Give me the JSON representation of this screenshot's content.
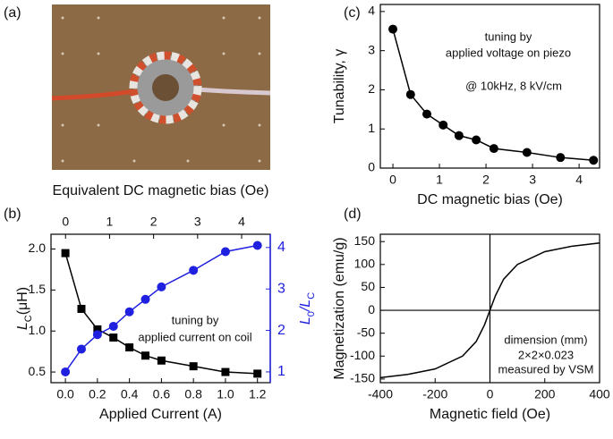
{
  "photo": {
    "label": "(a)"
  },
  "chart_data": [
    {
      "type": "line",
      "label": "(b)",
      "xlabel": "Applied Current (A)",
      "ylabel": [
        "L",
        "C",
        "(μH)"
      ],
      "y2label": [
        "L",
        "0",
        "/L",
        "C"
      ],
      "x2label": "Equivalent DC magnetic bias (Oe)",
      "x": [
        0,
        0.1,
        0.2,
        0.3,
        0.4,
        0.5,
        0.6,
        0.8,
        1.0,
        1.2
      ],
      "series": [
        {
          "name": "L_C",
          "color": "#000000",
          "marker": "square",
          "values": [
            1.95,
            1.27,
            1.02,
            0.92,
            0.8,
            0.7,
            0.64,
            0.57,
            0.5,
            0.48
          ]
        },
        {
          "name": "L0/LC",
          "color": "#2020e0",
          "marker": "circle",
          "axis": "y2",
          "values": [
            1,
            1.55,
            1.9,
            2.1,
            2.45,
            2.75,
            3.05,
            3.45,
            3.9,
            4.05
          ]
        }
      ],
      "xlim": [
        -0.09,
        1.28
      ],
      "xticks": [
        {
          "value": 0,
          "label": "0.0"
        },
        {
          "value": 0.2,
          "label": "0.2"
        },
        {
          "value": 0.4,
          "label": "0.4"
        },
        {
          "value": 0.6,
          "label": "0.6"
        },
        {
          "value": 0.8,
          "label": "0.8"
        },
        {
          "value": 1,
          "label": "1.0"
        },
        {
          "value": 1.2,
          "label": "1.2"
        }
      ],
      "ylim": [
        0.37,
        2.18
      ],
      "yticks": [
        0.5,
        {
          "value": 1,
          "label": "1.0"
        },
        1.5,
        {
          "value": 2,
          "label": "2.0"
        }
      ],
      "y2lim": [
        0.74,
        4.32
      ],
      "y2ticks": [
        1,
        2,
        3,
        4
      ],
      "x2lim": [
        -0.33,
        4.65
      ],
      "x2ticks": [
        0,
        1,
        2,
        3,
        4
      ],
      "annotations": [
        "tuning by",
        "applied current on coil"
      ]
    },
    {
      "type": "line",
      "label": "(c)",
      "xlabel": "DC magnetic bias (Oe)",
      "ylabel": "Tunability, γ",
      "x": [
        0,
        0.38,
        0.73,
        1.08,
        1.42,
        1.79,
        2.17,
        2.88,
        3.6,
        4.31
      ],
      "series": [
        {
          "name": "tunability",
          "color": "#000000",
          "marker": "circle",
          "values": [
            3.55,
            1.88,
            1.38,
            1.1,
            0.83,
            0.72,
            0.5,
            0.4,
            0.27,
            0.2
          ]
        }
      ],
      "xlim": [
        -0.27,
        4.44
      ],
      "xticks": [
        0,
        1,
        2,
        3,
        4
      ],
      "ylim": [
        0,
        4.18
      ],
      "yticks": [
        0,
        1,
        2,
        3,
        4
      ],
      "annotations": [
        "tuning by",
        "applied voltage on piezo",
        "@ 10kHz, 8 kV/cm"
      ]
    },
    {
      "type": "line",
      "label": "(d)",
      "xlabel": "Magnetic field (Oe)",
      "ylabel": "Magnetization (emu/g)",
      "zero_lines": true,
      "x": [
        -400,
        -300,
        -200,
        -100,
        -50,
        -20,
        0,
        20,
        50,
        100,
        200,
        300,
        400
      ],
      "series": [
        {
          "name": "M-H",
          "color": "#000000",
          "marker": "none",
          "values": [
            -147,
            -140,
            -128,
            -100,
            -68,
            -32,
            0,
            32,
            68,
            100,
            128,
            140,
            147
          ]
        }
      ],
      "xlim": [
        -400,
        400
      ],
      "xticks": [
        -400,
        -200,
        0,
        200,
        400
      ],
      "ylim": [
        -158,
        166
      ],
      "yticks": [
        -150,
        -100,
        -50,
        0,
        50,
        100,
        150
      ],
      "annotations": [
        "dimension (mm)",
        "2×2×0.023",
        "measured by VSM"
      ]
    }
  ]
}
